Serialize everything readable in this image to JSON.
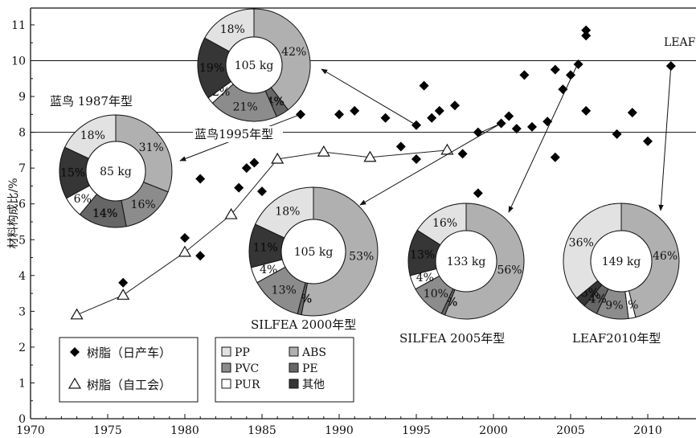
{
  "chart_data": {
    "type": "scatter",
    "ylabel": "材料构成比/%",
    "xlim": [
      1970,
      2012
    ],
    "ylim": [
      0,
      11.5
    ],
    "x_ticks": [
      "1970",
      "1975",
      "1980",
      "1985",
      "1990",
      "1995",
      "2000",
      "2005",
      "2010"
    ],
    "y_ticks": [
      "0",
      "1",
      "2",
      "3",
      "4",
      "5",
      "6",
      "7",
      "8",
      "9",
      "10",
      "11"
    ],
    "reference_lines": [
      8,
      10
    ],
    "series": [
      {
        "name": "树脂（日产车）",
        "marker": "diamond",
        "points": [
          [
            1976,
            3.8
          ],
          [
            1980,
            5.05
          ],
          [
            1981,
            6.7
          ],
          [
            1981,
            4.55
          ],
          [
            1983.5,
            6.45
          ],
          [
            1984,
            7.0
          ],
          [
            1984.5,
            7.15
          ],
          [
            1985,
            6.35
          ],
          [
            1987.5,
            8.5
          ],
          [
            1990,
            8.5
          ],
          [
            1991,
            8.6
          ],
          [
            1993,
            8.4
          ],
          [
            1994,
            7.6
          ],
          [
            1995,
            8.2
          ],
          [
            1995,
            7.25
          ],
          [
            1995.5,
            9.3
          ],
          [
            1996,
            8.4
          ],
          [
            1996.5,
            8.6
          ],
          [
            1997.5,
            8.75
          ],
          [
            1998,
            7.4
          ],
          [
            1999,
            6.3
          ],
          [
            1999,
            8.0
          ],
          [
            2000.5,
            8.25
          ],
          [
            2001,
            8.45
          ],
          [
            2001.5,
            8.1
          ],
          [
            2002,
            9.6
          ],
          [
            2002.5,
            8.15
          ],
          [
            2003.5,
            8.3
          ],
          [
            2004,
            9.75
          ],
          [
            2004,
            7.3
          ],
          [
            2004.5,
            9.2
          ],
          [
            2005,
            9.6
          ],
          [
            2005.5,
            9.9
          ],
          [
            2006,
            10.7
          ],
          [
            2006,
            8.6
          ],
          [
            2006,
            10.85
          ],
          [
            2008,
            7.95
          ],
          [
            2009,
            8.55
          ],
          [
            2010,
            7.75
          ],
          [
            2011.5,
            9.85
          ]
        ]
      },
      {
        "name": "树脂（自工会）",
        "marker": "triangle",
        "points": [
          [
            1973,
            2.9
          ],
          [
            1976,
            3.45
          ],
          [
            1980,
            4.65
          ],
          [
            1983,
            5.7
          ],
          [
            1986,
            7.25
          ],
          [
            1989,
            7.45
          ],
          [
            1992,
            7.3
          ],
          [
            1997,
            7.5
          ]
        ]
      }
    ],
    "legend": {
      "position": "bottom-left",
      "series_labels": [
        "树脂（日产车）",
        "树脂（自工会）"
      ],
      "materials": [
        {
          "label": "PP",
          "color": "#e2e2e2"
        },
        {
          "label": "ABS",
          "color": "#b0b0b0"
        },
        {
          "label": "PVC",
          "color": "#8c8c8c"
        },
        {
          "label": "PE",
          "color": "#666666"
        },
        {
          "label": "PUR",
          "color": "#ffffff"
        },
        {
          "label": "其他",
          "color": "#363636"
        }
      ]
    },
    "donuts": [
      {
        "label": "蓝鸟 1987年型",
        "total": "85 kg",
        "slices": [
          {
            "material": "ABS",
            "value": 31,
            "text": "31%"
          },
          {
            "material": "PVC",
            "value": 16,
            "text": "16%"
          },
          {
            "material": "PE",
            "value": 14,
            "text": "14%"
          },
          {
            "material": "PUR",
            "value": 6,
            "text": "6%"
          },
          {
            "material": "其他",
            "value": 15,
            "text": "15%"
          },
          {
            "material": "PP",
            "value": 18,
            "text": "18%"
          }
        ]
      },
      {
        "label": "蓝鸟1995年型",
        "total": "105 kg",
        "slices": [
          {
            "material": "ABS",
            "value": 42,
            "text": "42%"
          },
          {
            "material": "PE",
            "value": 4,
            "text": "4%"
          },
          {
            "material": "PVC",
            "value": 21,
            "text": "21%"
          },
          {
            "material": "PUR",
            "value": 2,
            "text": "2%"
          },
          {
            "material": "其他",
            "value": 19,
            "text": "19%"
          },
          {
            "material": "PP",
            "value": 18,
            "text": "18%"
          }
        ]
      },
      {
        "label": "SILFEA 2000年型",
        "total": "105 kg",
        "slices": [
          {
            "material": "ABS",
            "value": 53,
            "text": "53%"
          },
          {
            "material": "PE",
            "value": 1,
            "text": "1%"
          },
          {
            "material": "PVC",
            "value": 13,
            "text": "13%"
          },
          {
            "material": "PUR",
            "value": 4,
            "text": "4%"
          },
          {
            "material": "其他",
            "value": 11,
            "text": "11%"
          },
          {
            "material": "PP",
            "value": 18,
            "text": "18%"
          }
        ]
      },
      {
        "label": "SILFEA 2005年型",
        "total": "133 kg",
        "slices": [
          {
            "material": "ABS",
            "value": 56,
            "text": "56%"
          },
          {
            "material": "PE",
            "value": 1,
            "text": "1%"
          },
          {
            "material": "PVC",
            "value": 10,
            "text": "10%"
          },
          {
            "material": "PUR",
            "value": 4,
            "text": "4%"
          },
          {
            "material": "其他",
            "value": 13,
            "text": "13%"
          },
          {
            "material": "PP",
            "value": 16,
            "text": "16%"
          }
        ]
      },
      {
        "label": "LEAF2010年型",
        "total": "149 kg",
        "slices": [
          {
            "material": "ABS",
            "value": 46,
            "text": "46%"
          },
          {
            "material": "PUR",
            "value": 2,
            "text": "2%"
          },
          {
            "material": "PVC",
            "value": 9,
            "text": "9%"
          },
          {
            "material": "PE",
            "value": 4,
            "text": "4%"
          },
          {
            "material": "其他",
            "value": 3,
            "text": "3%"
          },
          {
            "material": "PP",
            "value": 36,
            "text": "36%"
          }
        ]
      }
    ],
    "annotations": [
      "LEAF"
    ]
  }
}
